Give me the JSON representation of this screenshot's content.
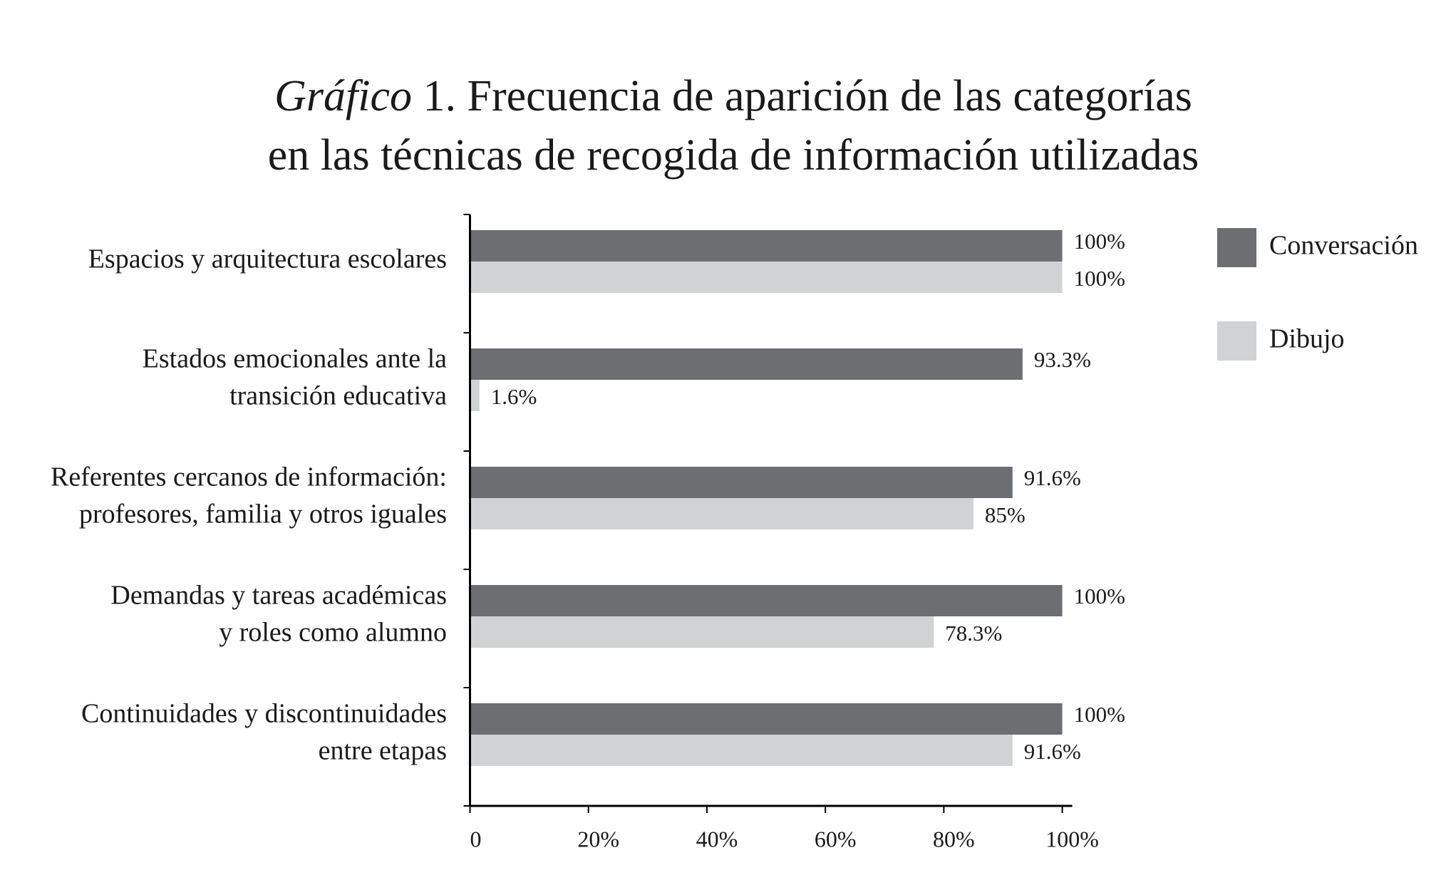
{
  "chart_data": {
    "type": "barh",
    "title_prefix": "Gráfico",
    "title": [
      "1. Frecuencia de aparición de las categorías",
      "en las técnicas de recogida de información utilizadas"
    ],
    "categories": [
      [
        "Espacios y arquitectura escolares"
      ],
      [
        "Estados emocionales ante la",
        "transición educativa"
      ],
      [
        "Referentes cercanos de información:",
        "profesores, familia y otros iguales"
      ],
      [
        "Demandas y tareas académicas",
        "y roles como alumno"
      ],
      [
        "Continuidades y discontinuidades",
        "entre etapas"
      ]
    ],
    "series": [
      {
        "name": "Conversación",
        "color": "#6d6e71",
        "values": [
          100,
          93.3,
          91.6,
          100,
          100
        ],
        "value_labels": [
          "100%",
          "93.3%",
          "91.6%",
          "100%",
          "100%"
        ]
      },
      {
        "name": "Dibujo",
        "color": "#d1d2d4",
        "values": [
          100,
          1.6,
          85,
          78.3,
          91.6
        ],
        "value_labels": [
          "100%",
          "1.6%",
          "85%",
          "78.3%",
          "91.6%"
        ]
      }
    ],
    "xlim": [
      0,
      100
    ],
    "xticks": [
      0,
      {
        "value": 20,
        "label": "20%"
      },
      {
        "value": 40,
        "label": "40%"
      },
      {
        "value": 60,
        "label": "60%"
      },
      {
        "value": 80,
        "label": "80%"
      },
      {
        "value": 100,
        "label": "100%"
      }
    ],
    "legend": "top-right"
  }
}
